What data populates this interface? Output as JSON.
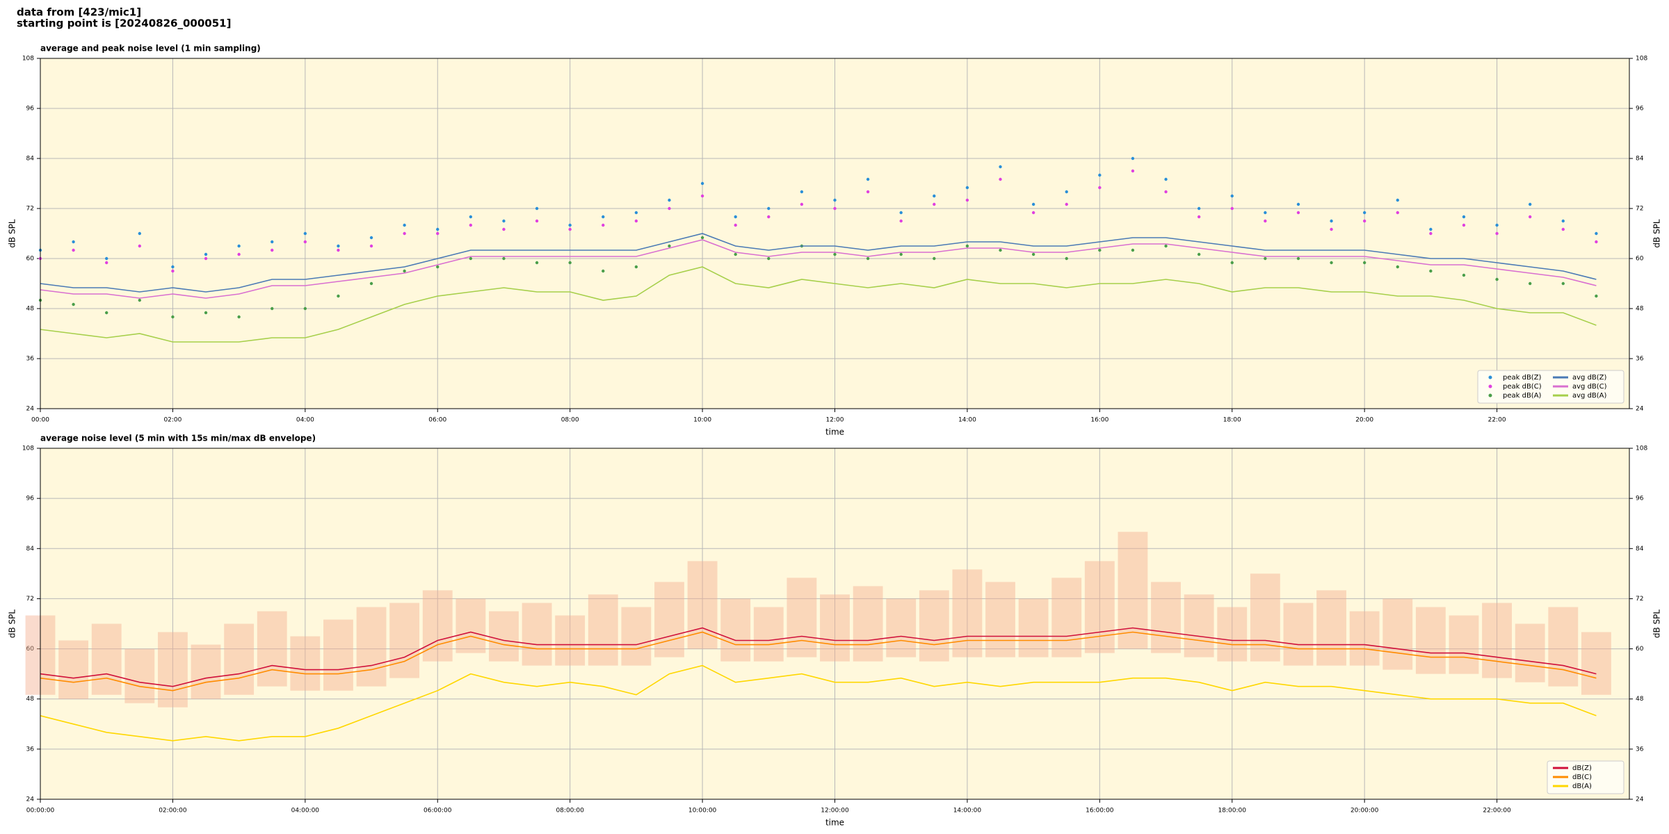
{
  "header": {
    "line1": "data from [423/mic1]",
    "line2": "starting point is [20240826_000051]"
  },
  "chart_data": [
    {
      "type": "line",
      "title": "average and peak noise level (1 min sampling)",
      "xlabel": "time",
      "ylabel": "dB SPL",
      "background": "#fff8dc",
      "grid": true,
      "legend": "lower right",
      "xlim": [
        0,
        24
      ],
      "ylim": [
        24,
        108
      ],
      "yticks": [
        24,
        36,
        48,
        60,
        72,
        84,
        96,
        108
      ],
      "xticks": [
        {
          "value": 0,
          "label": "00:00"
        },
        {
          "value": 2,
          "label": "02:00"
        },
        {
          "value": 4,
          "label": "04:00"
        },
        {
          "value": 6,
          "label": "06:00"
        },
        {
          "value": 8,
          "label": "08:00"
        },
        {
          "value": 10,
          "label": "10:00"
        },
        {
          "value": 12,
          "label": "12:00"
        },
        {
          "value": 14,
          "label": "14:00"
        },
        {
          "value": 16,
          "label": "16:00"
        },
        {
          "value": 18,
          "label": "18:00"
        },
        {
          "value": 20,
          "label": "20:00"
        },
        {
          "value": 22,
          "label": "22:00"
        }
      ],
      "x": [
        0,
        0.5,
        1,
        1.5,
        2,
        2.5,
        3,
        3.5,
        4,
        4.5,
        5,
        5.5,
        6,
        6.5,
        7,
        7.5,
        8,
        8.5,
        9,
        9.5,
        10,
        10.5,
        11,
        11.5,
        12,
        12.5,
        13,
        13.5,
        14,
        14.5,
        15,
        15.5,
        16,
        16.5,
        17,
        17.5,
        18,
        18.5,
        19,
        19.5,
        20,
        20.5,
        21,
        21.5,
        22,
        22.5,
        23,
        23.5
      ],
      "series": [
        {
          "name": "peak dB(Z)",
          "color": "#2a8fd8",
          "marker": true,
          "values": [
            62,
            64,
            60,
            66,
            58,
            61,
            63,
            64,
            66,
            63,
            65,
            68,
            67,
            70,
            69,
            72,
            68,
            70,
            71,
            74,
            78,
            70,
            72,
            76,
            74,
            79,
            71,
            75,
            77,
            82,
            73,
            76,
            80,
            84,
            79,
            72,
            75,
            71,
            73,
            69,
            71,
            74,
            67,
            70,
            68,
            73,
            69,
            66
          ]
        },
        {
          "name": "peak dB(C)",
          "color": "#e040e0",
          "marker": true,
          "values": [
            60,
            62,
            59,
            63,
            57,
            60,
            61,
            62,
            64,
            62,
            63,
            66,
            66,
            68,
            67,
            69,
            67,
            68,
            69,
            72,
            75,
            68,
            70,
            73,
            72,
            76,
            69,
            73,
            74,
            79,
            71,
            73,
            77,
            81,
            76,
            70,
            72,
            69,
            71,
            67,
            69,
            71,
            66,
            68,
            66,
            70,
            67,
            64
          ]
        },
        {
          "name": "peak dB(A)",
          "color": "#4a9e4a",
          "marker": true,
          "values": [
            50,
            49,
            47,
            50,
            46,
            47,
            46,
            48,
            48,
            51,
            54,
            57,
            58,
            60,
            60,
            59,
            59,
            57,
            58,
            63,
            65,
            61,
            60,
            63,
            61,
            60,
            61,
            60,
            63,
            62,
            61,
            60,
            62,
            62,
            63,
            61,
            59,
            60,
            60,
            59,
            59,
            58,
            57,
            56,
            55,
            54,
            54,
            51
          ]
        },
        {
          "name": "avg dB(Z)",
          "color": "#4a7ab5",
          "marker": false,
          "values": [
            54,
            53,
            53,
            52,
            53,
            52,
            53,
            55,
            55,
            56,
            57,
            58,
            60,
            62,
            62,
            62,
            62,
            62,
            62,
            64,
            66,
            63,
            62,
            63,
            63,
            62,
            63,
            63,
            64,
            64,
            63,
            63,
            64,
            65,
            65,
            64,
            63,
            62,
            62,
            62,
            62,
            61,
            60,
            60,
            59,
            58,
            57,
            55
          ]
        },
        {
          "name": "avg dB(C)",
          "color": "#d96fd0",
          "marker": false,
          "values": [
            52.5,
            51.5,
            51.5,
            50.5,
            51.5,
            50.5,
            51.5,
            53.5,
            53.5,
            54.5,
            55.5,
            56.5,
            58.5,
            60.5,
            60.5,
            60.5,
            60.5,
            60.5,
            60.5,
            62.5,
            64.5,
            61.5,
            60.5,
            61.5,
            61.5,
            60.5,
            61.5,
            61.5,
            62.5,
            62.5,
            61.5,
            61.5,
            62.5,
            63.5,
            63.5,
            62.5,
            61.5,
            60.5,
            60.5,
            60.5,
            60.5,
            59.5,
            58.5,
            58.5,
            57.5,
            56.5,
            55.5,
            53.5
          ]
        },
        {
          "name": "avg dB(A)",
          "color": "#a6cf4a",
          "marker": false,
          "values": [
            43,
            42,
            41,
            42,
            40,
            40,
            40,
            41,
            41,
            43,
            46,
            49,
            51,
            52,
            53,
            52,
            52,
            50,
            51,
            56,
            58,
            54,
            53,
            55,
            54,
            53,
            54,
            53,
            55,
            54,
            54,
            53,
            54,
            54,
            55,
            54,
            52,
            53,
            53,
            52,
            52,
            51,
            51,
            50,
            48,
            47,
            47,
            44
          ]
        }
      ]
    },
    {
      "type": "line",
      "title": "average noise level (5 min with 15s min/max dB envelope)",
      "xlabel": "time",
      "ylabel": "dB SPL",
      "background": "#fff8dc",
      "grid": true,
      "legend": "lower right",
      "xlim": [
        0,
        24
      ],
      "ylim": [
        24,
        108
      ],
      "yticks": [
        24,
        36,
        48,
        60,
        72,
        84,
        96,
        108
      ],
      "xticks": [
        {
          "value": 0,
          "label": "00:00:00"
        },
        {
          "value": 2,
          "label": "02:00:00"
        },
        {
          "value": 4,
          "label": "04:00:00"
        },
        {
          "value": 6,
          "label": "06:00:00"
        },
        {
          "value": 8,
          "label": "08:00:00"
        },
        {
          "value": 10,
          "label": "10:00:00"
        },
        {
          "value": 12,
          "label": "12:00:00"
        },
        {
          "value": 14,
          "label": "14:00:00"
        },
        {
          "value": 16,
          "label": "16:00:00"
        },
        {
          "value": 18,
          "label": "18:00:00"
        },
        {
          "value": 20,
          "label": "20:00:00"
        },
        {
          "value": 22,
          "label": "22:00:00"
        }
      ],
      "x": [
        0,
        0.5,
        1,
        1.5,
        2,
        2.5,
        3,
        3.5,
        4,
        4.5,
        5,
        5.5,
        6,
        6.5,
        7,
        7.5,
        8,
        8.5,
        9,
        9.5,
        10,
        10.5,
        11,
        11.5,
        12,
        12.5,
        13,
        13.5,
        14,
        14.5,
        15,
        15.5,
        16,
        16.5,
        17,
        17.5,
        18,
        18.5,
        19,
        19.5,
        20,
        20.5,
        21,
        21.5,
        22,
        22.5,
        23,
        23.5
      ],
      "envelope": {
        "color": "#f4b090",
        "min": [
          49,
          48,
          49,
          47,
          46,
          48,
          49,
          51,
          50,
          50,
          51,
          53,
          57,
          59,
          57,
          56,
          56,
          56,
          56,
          58,
          60,
          57,
          57,
          58,
          57,
          57,
          58,
          57,
          58,
          58,
          58,
          58,
          59,
          60,
          59,
          58,
          57,
          57,
          56,
          56,
          56,
          55,
          54,
          54,
          53,
          52,
          51,
          49
        ],
        "max": [
          68,
          62,
          66,
          60,
          64,
          61,
          66,
          69,
          63,
          67,
          70,
          71,
          74,
          72,
          69,
          71,
          68,
          73,
          70,
          76,
          81,
          72,
          70,
          77,
          73,
          75,
          72,
          74,
          79,
          76,
          72,
          77,
          81,
          88,
          76,
          73,
          70,
          78,
          71,
          74,
          69,
          72,
          70,
          68,
          71,
          66,
          70,
          64
        ]
      },
      "series": [
        {
          "name": "dB(Z)",
          "color": "#d0103a",
          "marker": false,
          "values": [
            54,
            53,
            54,
            52,
            51,
            53,
            54,
            56,
            55,
            55,
            56,
            58,
            62,
            64,
            62,
            61,
            61,
            61,
            61,
            63,
            65,
            62,
            62,
            63,
            62,
            62,
            63,
            62,
            63,
            63,
            63,
            63,
            64,
            65,
            64,
            63,
            62,
            62,
            61,
            61,
            61,
            60,
            59,
            59,
            58,
            57,
            56,
            54
          ]
        },
        {
          "name": "dB(C)",
          "color": "#ff8c00",
          "marker": false,
          "values": [
            53,
            52,
            53,
            51,
            50,
            52,
            53,
            55,
            54,
            54,
            55,
            57,
            61,
            63,
            61,
            60,
            60,
            60,
            60,
            62,
            64,
            61,
            61,
            62,
            61,
            61,
            62,
            61,
            62,
            62,
            62,
            62,
            63,
            64,
            63,
            62,
            61,
            61,
            60,
            60,
            60,
            59,
            58,
            58,
            57,
            56,
            55,
            53
          ]
        },
        {
          "name": "dB(A)",
          "color": "#ffd700",
          "marker": false,
          "values": [
            44,
            42,
            40,
            39,
            38,
            39,
            38,
            39,
            39,
            41,
            44,
            47,
            50,
            54,
            52,
            51,
            52,
            51,
            49,
            54,
            56,
            52,
            53,
            54,
            52,
            52,
            53,
            51,
            52,
            51,
            52,
            52,
            52,
            53,
            53,
            52,
            50,
            52,
            51,
            51,
            50,
            49,
            48,
            48,
            48,
            47,
            47,
            44
          ]
        }
      ]
    }
  ]
}
